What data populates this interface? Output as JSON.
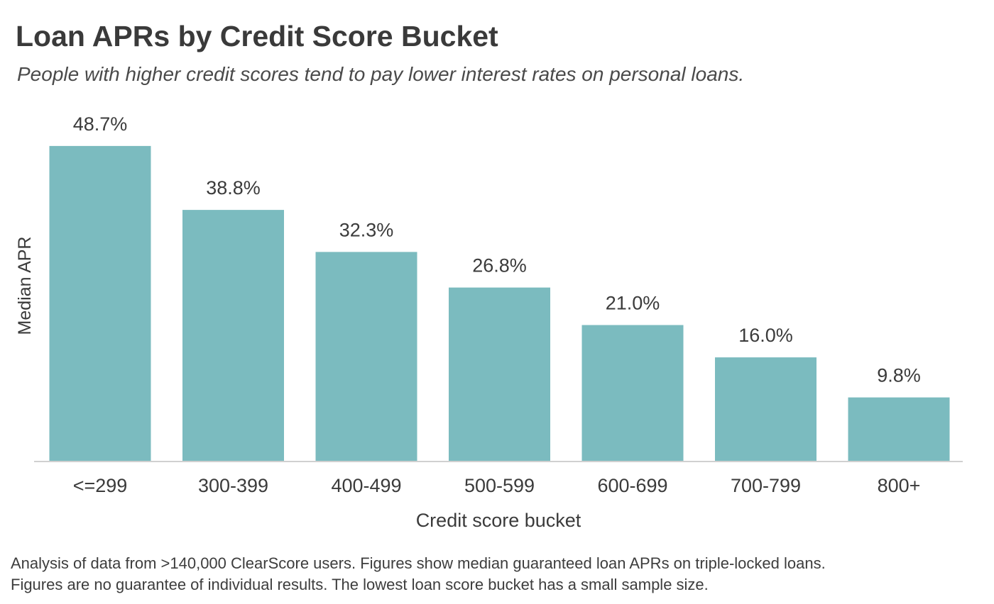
{
  "title": "Loan APRs by Credit Score Bucket",
  "subtitle": "People with higher credit scores tend to pay lower interest rates on personal loans.",
  "footnote": {
    "line1": "Analysis of data from >140,000 ClearScore users. Figures show median guaranteed loan APRs on triple-locked loans.",
    "line2": "Figures are no guarantee of individual results. The lowest loan score bucket has a small sample size."
  },
  "colors": {
    "bar": "#7bbbbf",
    "axis": "#d0d0d0",
    "text": "#3b3b3b"
  },
  "chart_data": {
    "type": "bar",
    "categories": [
      "<=299",
      "300-399",
      "400-499",
      "500-599",
      "600-699",
      "700-799",
      "800+"
    ],
    "values": [
      48.7,
      38.8,
      32.3,
      26.8,
      21.0,
      16.0,
      9.8
    ],
    "data_labels": [
      "48.7%",
      "38.8%",
      "32.3%",
      "26.8%",
      "21.0%",
      "16.0%",
      "9.8%"
    ],
    "title": "Loan APRs by Credit Score Bucket",
    "xlabel": "Credit score bucket",
    "ylabel": "Median APR",
    "ylim": [
      0,
      50
    ],
    "grid": false,
    "legend": "none"
  }
}
